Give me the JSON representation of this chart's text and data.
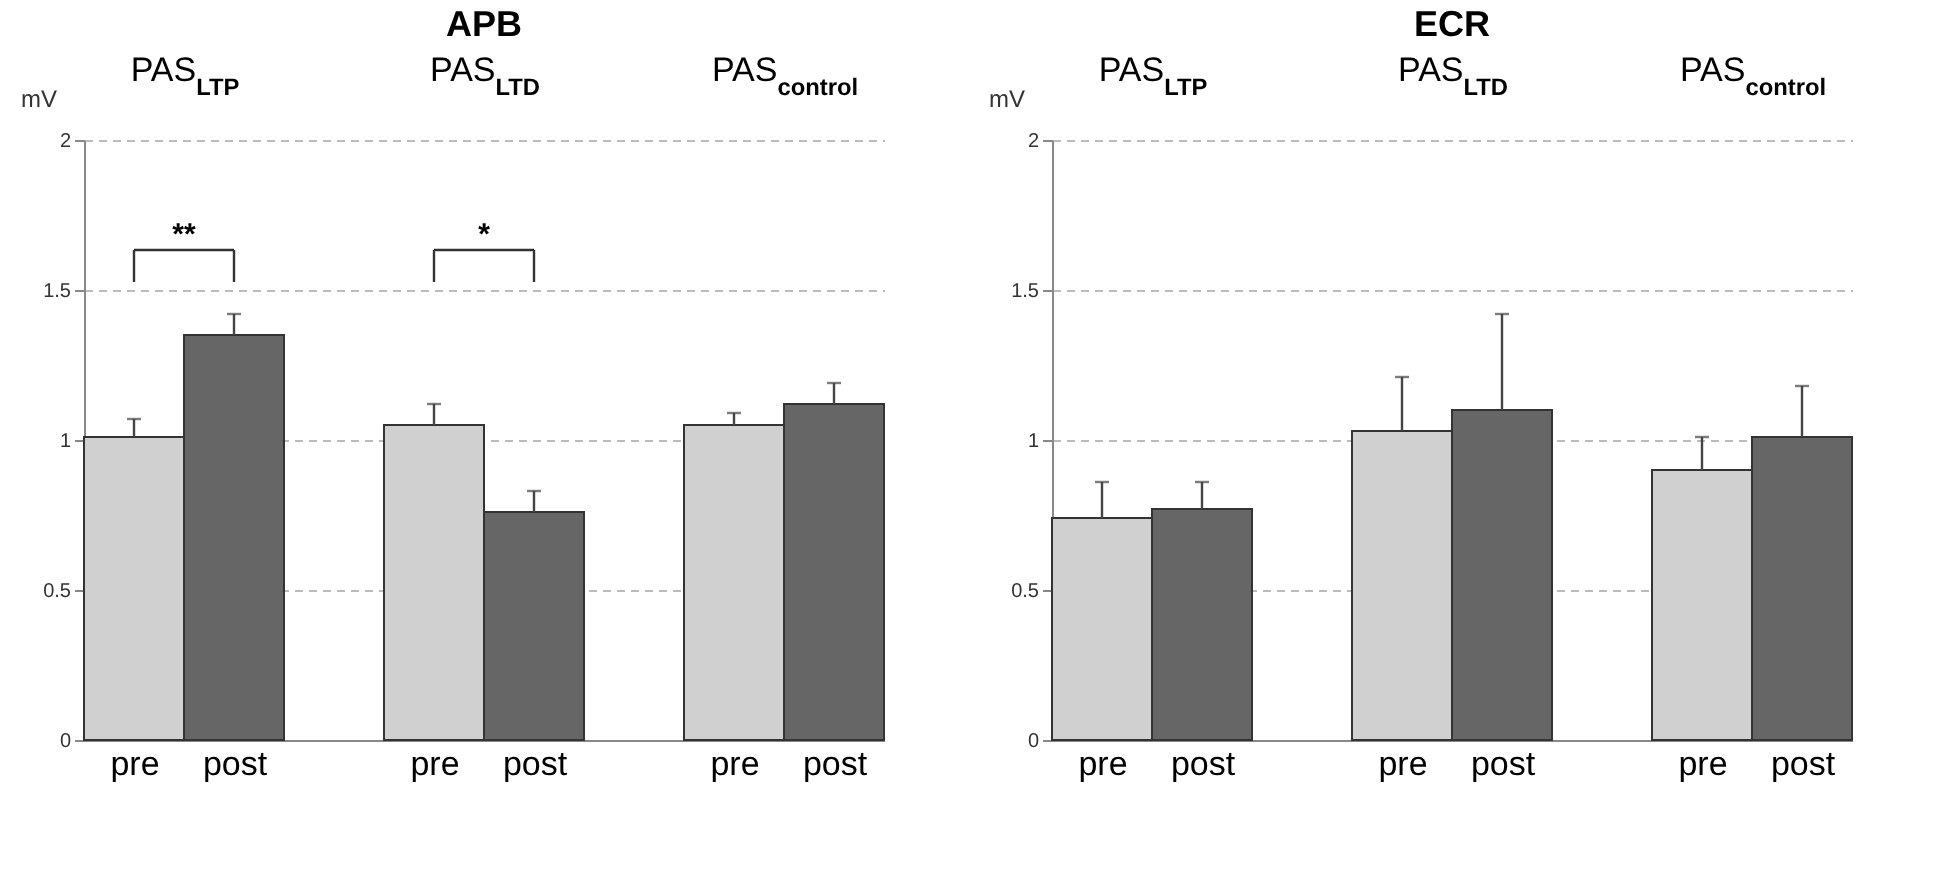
{
  "chart_data": [
    {
      "type": "bar",
      "title": "APB",
      "ylabel": "mV",
      "categories": [
        "PAS$_{LTP}$",
        "PAS$_{LTD}$",
        "PAS$_{control}$"
      ],
      "series": [
        {
          "name": "pre",
          "color": "#d0d0d0",
          "values": [
            1.01,
            1.05,
            1.05
          ],
          "errors": [
            [
              1.01,
              1.07
            ],
            [
              1.05,
              1.12
            ],
            [
              1.05,
              1.09
            ]
          ]
        },
        {
          "name": "post",
          "color": "#666666",
          "values": [
            1.35,
            0.76,
            1.12
          ],
          "errors": [
            [
              1.35,
              1.42
            ],
            [
              0.76,
              0.83
            ],
            [
              1.12,
              1.19
            ]
          ]
        }
      ],
      "ylim": [
        0,
        2
      ],
      "yticks": [
        0,
        0.5,
        1,
        1.5,
        2
      ],
      "grid": "y",
      "annotations": [
        "**",
        "*"
      ]
    },
    {
      "type": "bar",
      "title": "ECR",
      "ylabel": "mV",
      "categories": [
        "PAS$_{LTP}$",
        "PAS$_{LTD}$",
        "PAS$_{control}$"
      ],
      "series": [
        {
          "name": "pre",
          "color": "#d0d0d0",
          "values": [
            0.74,
            1.03,
            0.9
          ],
          "errors": [
            [
              0.74,
              0.86
            ],
            [
              1.03,
              1.21
            ],
            [
              0.9,
              1.01
            ]
          ]
        },
        {
          "name": "post",
          "color": "#666666",
          "values": [
            0.77,
            1.1,
            1.01
          ],
          "errors": [
            [
              0.77,
              0.86
            ],
            [
              1.1,
              1.42
            ],
            [
              1.01,
              1.18
            ]
          ]
        }
      ],
      "ylim": [
        0,
        2
      ],
      "yticks": [
        0,
        0.5,
        1,
        1.5,
        2
      ],
      "grid": "y"
    }
  ]
}
